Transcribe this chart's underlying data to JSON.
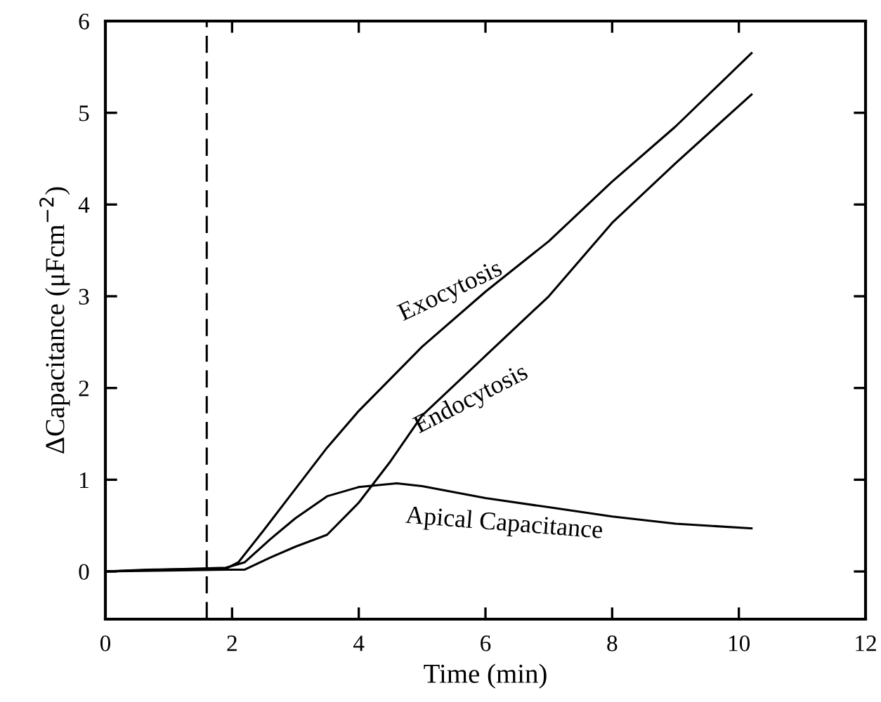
{
  "chart_data": {
    "type": "line",
    "xlabel": "Time (min)",
    "ylabel": "ΔCapacitance (μFcm$^{−2}$)",
    "xlim": [
      0,
      12
    ],
    "ylim": [
      -0.52,
      6
    ],
    "xticks": [
      0,
      2,
      4,
      6,
      8,
      10,
      12
    ],
    "yticks": [
      0,
      1,
      2,
      3,
      4,
      5,
      6
    ],
    "grid": false,
    "legend": false,
    "marker": "none",
    "line_style": "solid",
    "series": [
      {
        "name": "Exocytosis",
        "color": "#000000",
        "x": [
          0,
          0.65,
          1.9,
          2.1,
          2.5,
          3,
          3.5,
          4,
          4.5,
          5,
          6,
          7,
          8,
          9,
          10.2
        ],
        "values": [
          0,
          0.02,
          0.03,
          0.1,
          0.45,
          0.9,
          1.35,
          1.75,
          2.1,
          2.45,
          3.05,
          3.6,
          4.25,
          4.85,
          5.65
        ]
      },
      {
        "name": "Endocytosis",
        "color": "#000000",
        "x": [
          0,
          1.9,
          2.2,
          2.6,
          3,
          3.5,
          4,
          4.5,
          5,
          6,
          7,
          8,
          9,
          10.2
        ],
        "values": [
          0,
          0.02,
          0.02,
          0.15,
          0.27,
          0.4,
          0.75,
          1.2,
          1.7,
          2.35,
          3.0,
          3.8,
          4.45,
          5.2
        ]
      },
      {
        "name": "Apical Capacitance",
        "color": "#000000",
        "x": [
          0,
          1.9,
          2.2,
          2.6,
          3,
          3.5,
          4,
          4.6,
          5,
          6,
          7,
          8,
          9,
          10.2
        ],
        "values": [
          0,
          0.04,
          0.1,
          0.35,
          0.58,
          0.82,
          0.92,
          0.96,
          0.93,
          0.8,
          0.7,
          0.6,
          0.52,
          0.47
        ]
      }
    ],
    "ref_lines": [
      {
        "axis": "x",
        "value": 1.6,
        "color": "#000000",
        "line_style": "dashed"
      }
    ]
  }
}
